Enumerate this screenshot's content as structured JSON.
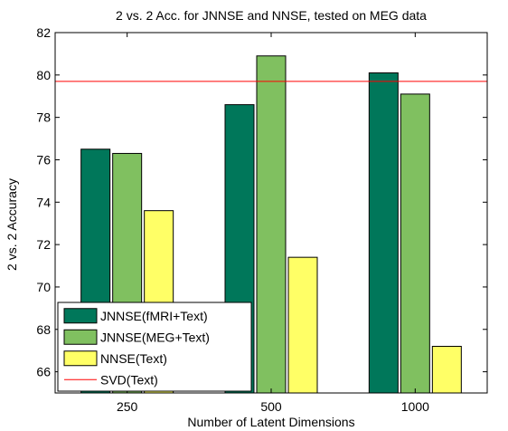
{
  "chart_data": {
    "type": "bar",
    "title": "2 vs. 2 Acc. for JNNSE and NNSE, tested on MEG data",
    "xlabel": "Number of Latent Dimensions",
    "ylabel": "2 vs. 2 Accuracy",
    "categories": [
      "250",
      "500",
      "1000"
    ],
    "ylim": [
      65,
      82
    ],
    "yticks": [
      66,
      68,
      70,
      72,
      74,
      76,
      78,
      80,
      82
    ],
    "grid": false,
    "legend_position": "bottom-left",
    "series": [
      {
        "name": "JNNSE(fMRI+Text)",
        "color": "#00775a",
        "values": [
          76.5,
          78.6,
          80.1
        ]
      },
      {
        "name": "JNNSE(MEG+Text)",
        "color": "#80c060",
        "values": [
          76.3,
          80.9,
          79.1
        ]
      },
      {
        "name": "NNSE(Text)",
        "color": "#ffff66",
        "values": [
          73.6,
          71.4,
          67.2
        ]
      }
    ],
    "reference_lines": [
      {
        "name": "SVD(Text)",
        "color": "#ff0000",
        "value": 79.7
      }
    ]
  }
}
